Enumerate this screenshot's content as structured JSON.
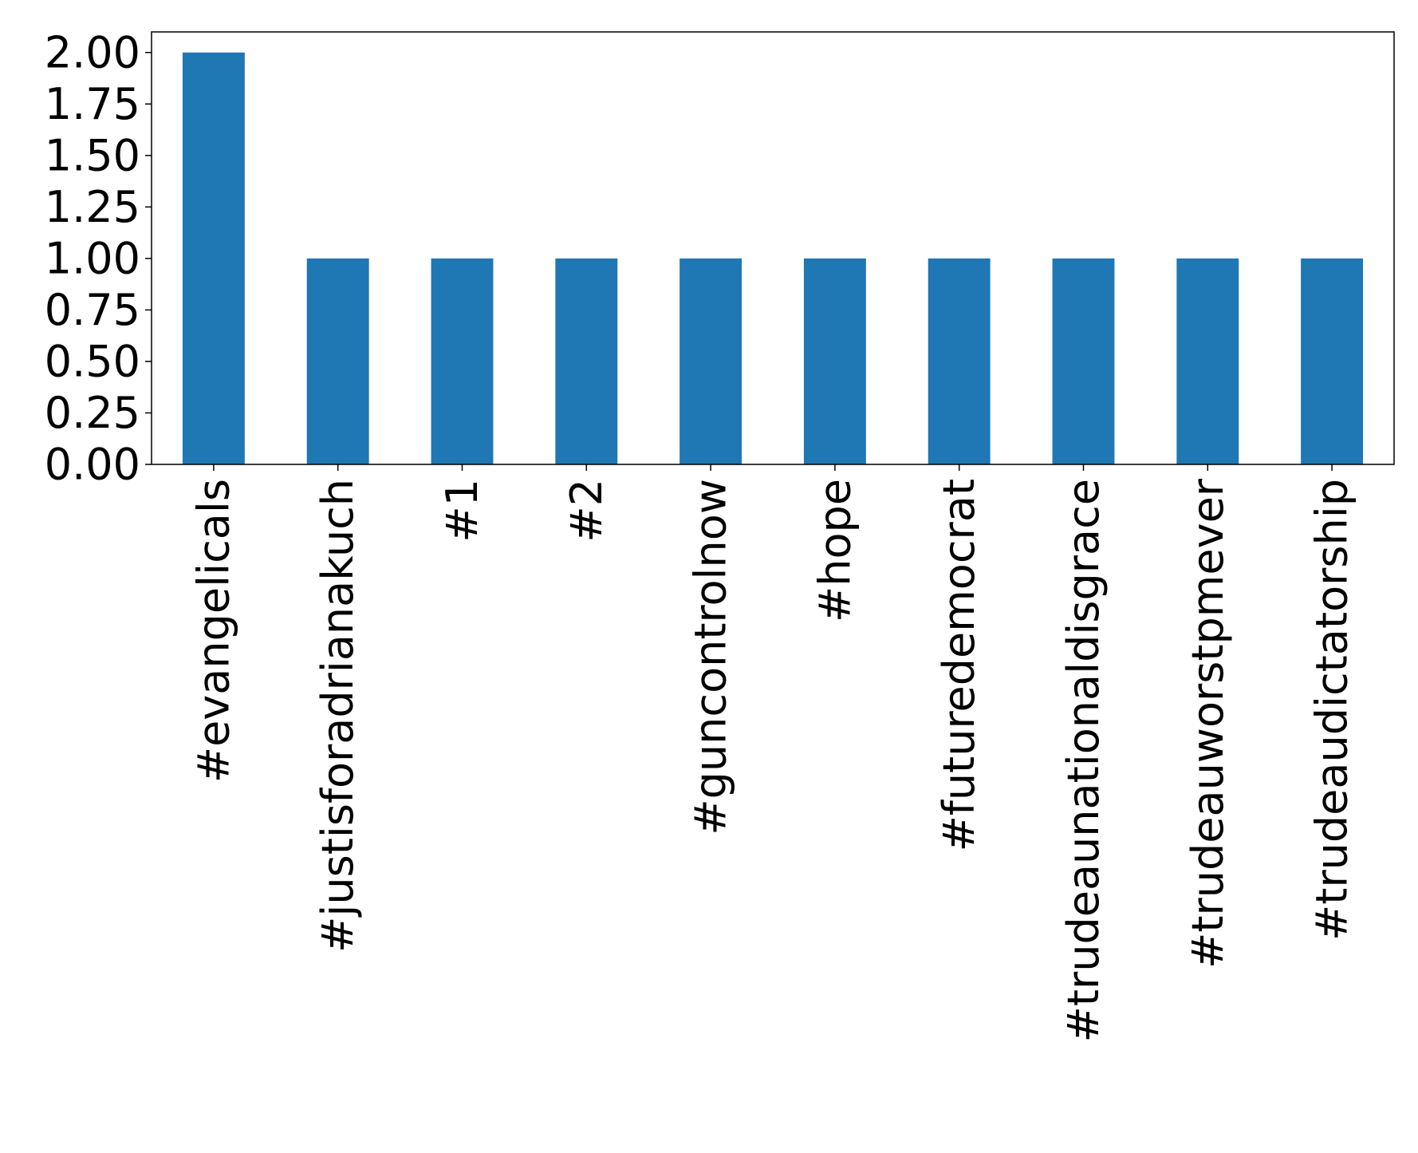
{
  "chart_data": {
    "type": "bar",
    "categories": [
      "#evangelicals",
      "#justisforadrianakuch",
      "#1",
      "#2",
      "#guncontrolnow",
      "#hope",
      "#futuredemocrat",
      "#trudeaunationaldisgrace",
      "#trudeauworstpmever",
      "#trudeaudictatorship"
    ],
    "values": [
      2,
      1,
      1,
      1,
      1,
      1,
      1,
      1,
      1,
      1
    ],
    "ylim": [
      0,
      2.1
    ],
    "yticks": [
      "0.00",
      "0.25",
      "0.50",
      "0.75",
      "1.00",
      "1.25",
      "1.50",
      "1.75",
      "2.00"
    ],
    "bar_color": "#1f77b4",
    "grid": false,
    "legend": "none"
  }
}
